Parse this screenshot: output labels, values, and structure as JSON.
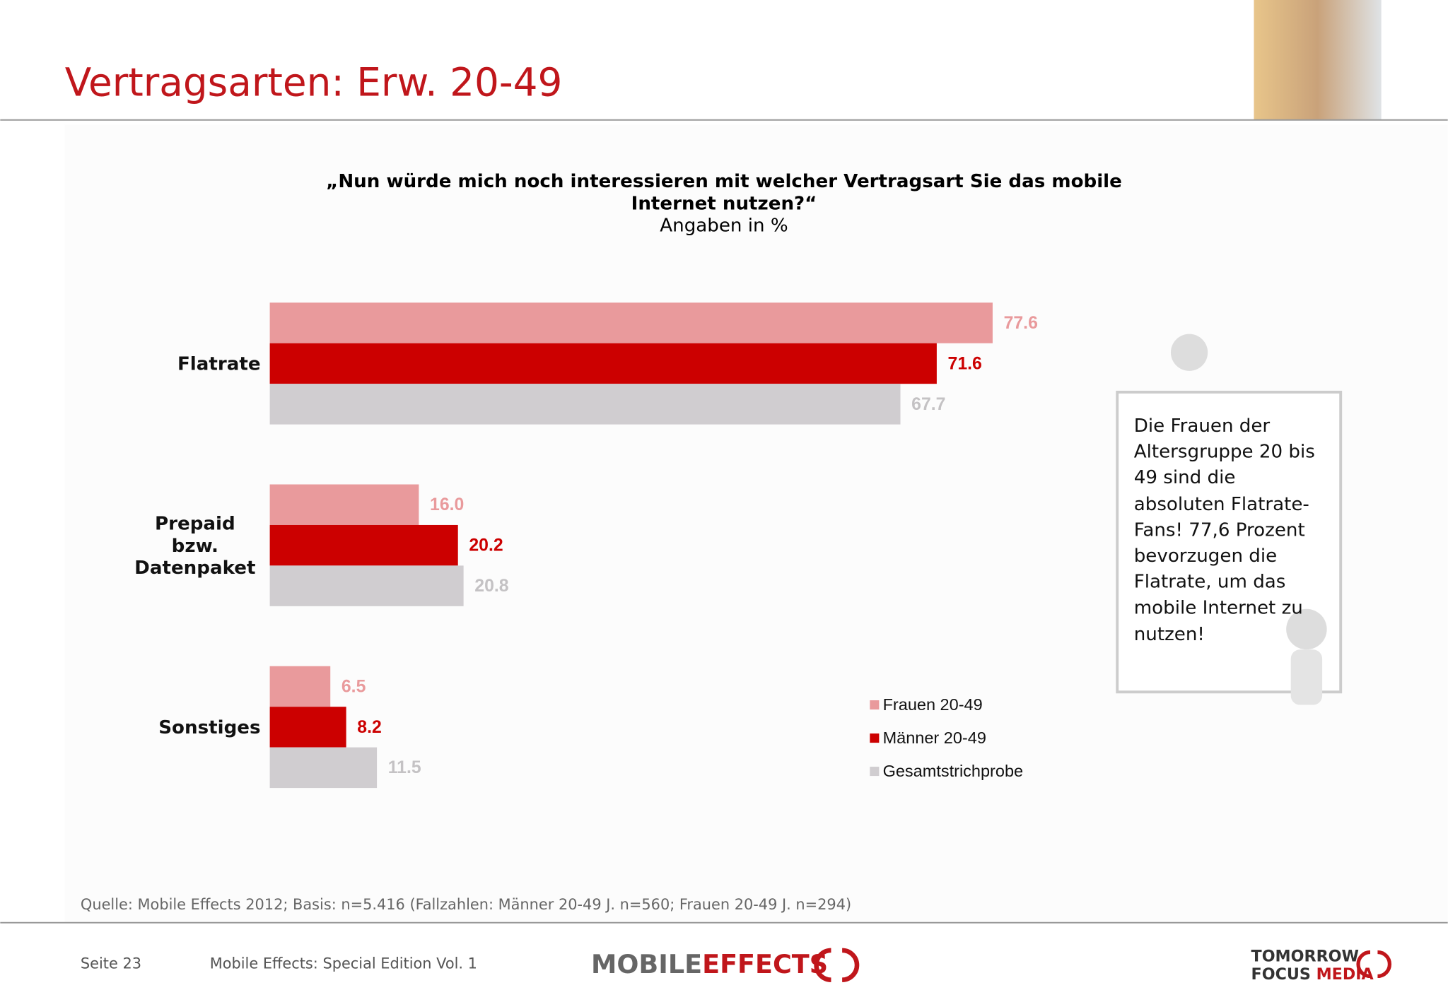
{
  "header": {
    "title": "Vertragsarten: Erw. 20-49"
  },
  "chart_data": {
    "type": "hbar",
    "title": "„Nun würde mich noch interessieren mit welcher Vertragsart Sie das mobile Internet nutzen?“",
    "subtitle": "Angaben in %",
    "categories": [
      "Flatrate",
      "Prepaid bzw. Datenpaket",
      "Sonstiges"
    ],
    "series": [
      {
        "name": "Frauen 20-49",
        "color": "#e99a9c",
        "values": [
          77.6,
          16.0,
          6.5
        ],
        "value_labels": [
          "77.6",
          "16.0",
          "6.5"
        ]
      },
      {
        "name": "Männer 20-49",
        "color": "#cc0000",
        "values": [
          71.6,
          20.2,
          8.2
        ],
        "value_labels": [
          "71.6",
          "20.2",
          "8.2"
        ]
      },
      {
        "name": "Gesamtstrichprobe",
        "color": "#d0cdd0",
        "values": [
          67.7,
          20.8,
          11.5
        ],
        "value_labels": [
          "67.7",
          "20.8",
          "11.5"
        ]
      }
    ],
    "xlim": [
      0,
      100
    ],
    "legend": "lower right"
  },
  "note": "Die Frauen der Altersgruppe 20 bis 49 sind die absoluten Flatrate-Fans! 77,6 Prozent bevorzugen die Flatrate, um das  mobile Internet zu nutzen!",
  "source": "Quelle: Mobile Effects 2012; Basis: n=5.416 (Fallzahlen: Männer 20-49 J. n=560; Frauen 20-49 J. n=294)",
  "footer": {
    "page": "Seite 23",
    "publication": "Mobile Effects: Special Edition Vol. 1",
    "logo_left_a": "MOBILE",
    "logo_left_b": "EFFECTS",
    "logo_right_a": "TOMORROW",
    "logo_right_b": "FOCUS",
    "logo_right_c": "MEDIA"
  }
}
